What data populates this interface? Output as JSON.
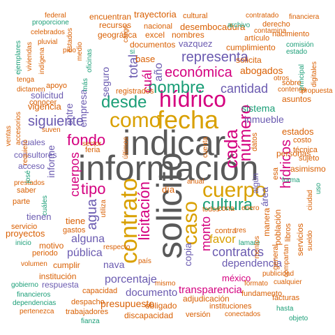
{
  "palette": {
    "gray": "#595959",
    "gold": "#D9A000",
    "magenta": "#D4007F",
    "purple": "#6A5AB0",
    "teal": "#1B9E77",
    "orange": "#D95F02"
  },
  "words": [
    "información",
    "indicar",
    "solicito",
    "fecha",
    "hídrico",
    "como",
    "contrato",
    "caso",
    "cuerpo",
    "cultura",
    "nombre",
    "desde",
    "cada",
    "número",
    "licitación",
    "tipo",
    "fondo",
    "económica",
    "representa",
    "cantidad",
    "hídricos",
    "siguiente",
    "agua",
    "cuerpos",
    "monto",
    "contratos",
    "alguna",
    "pública",
    "porcentaje",
    "documento",
    "presupuesto",
    "transparencia",
    "dependencia",
    "méxico",
    "total",
    "cuál",
    "año",
    "copia",
    "favor",
    "inmueble",
    "sistema",
    "estados",
    "abogados",
    "proyectos",
    "solicitud",
    "vigencia",
    "empresa",
    "informe",
    "entre",
    "seguro",
    "nava",
    "día",
    "trayectoria",
    "desembocadura",
    "cumplimiento",
    "vazquez",
    "nombres",
    "recursos",
    "encuentran",
    "documentos",
    "excel",
    "base",
    "geográfica",
    "nacional",
    "cultural",
    "contratado",
    "financiera",
    "federal",
    "proporcione",
    "celebrados",
    "pluvial",
    "pido",
    "indígena",
    "viviendas",
    "ejemplares",
    "tenga",
    "dictamen",
    "apoyo",
    "conocer",
    "acceso",
    "consultores",
    "cuales",
    "saber",
    "parte",
    "servicio",
    "inicio",
    "periodo",
    "volumen",
    "institución",
    "gobierno",
    "respuesta",
    "capacidad",
    "despacho",
    "trabajadores",
    "pertenezca",
    "financieros",
    "dependencias",
    "fianza",
    "obligado",
    "discapacidad",
    "versión",
    "instituciones",
    "conectados",
    "objeto",
    "hasta",
    "facturas",
    "fundamento",
    "formato",
    "cualquier",
    "publicidad",
    "adjudicación",
    "mismo",
    "país",
    "gastos",
    "tiene",
    "motivo",
    "cumplir",
    "respecto",
    "contra",
    "zona",
    "enero",
    "tres",
    "lamare",
    "montos",
    "manera",
    "población",
    "general",
    "libros",
    "servicios",
    "personas",
    "asimismo",
    "sujeto",
    "forma",
    "uso",
    "ciudad",
    "sueldo",
    "compartan",
    "detallar",
    "asuntos",
    "propuesta",
    "costo",
    "técnica",
    "solicita",
    "derecho",
    "nacimiento",
    "contamina",
    "artículo",
    "archivo",
    "estado",
    "comisión",
    "digitales",
    "principal",
    "contenga",
    "otros",
    "sobre",
    "¿cuál",
    "llevan",
    "registrados",
    "más",
    "oficinas",
    "medio",
    "cargo",
    "rural",
    "si",
    "cuenta",
    "últimos",
    "utiliza",
    "feria",
    "sector",
    "suven",
    "requiero",
    "ventas",
    "accesorios",
    "acredito",
    "estados",
    "públicos",
    "prestados",
    "josé",
    "cuáles",
    "tienen",
    "datos",
    "área",
    "algún",
    "anual",
    "todos",
    "esa",
    "años",
    "sabe",
    "así",
    "objeto",
    "debe",
    "conoce",
    "fuerón",
    "del",
    "pueden"
  ]
}
